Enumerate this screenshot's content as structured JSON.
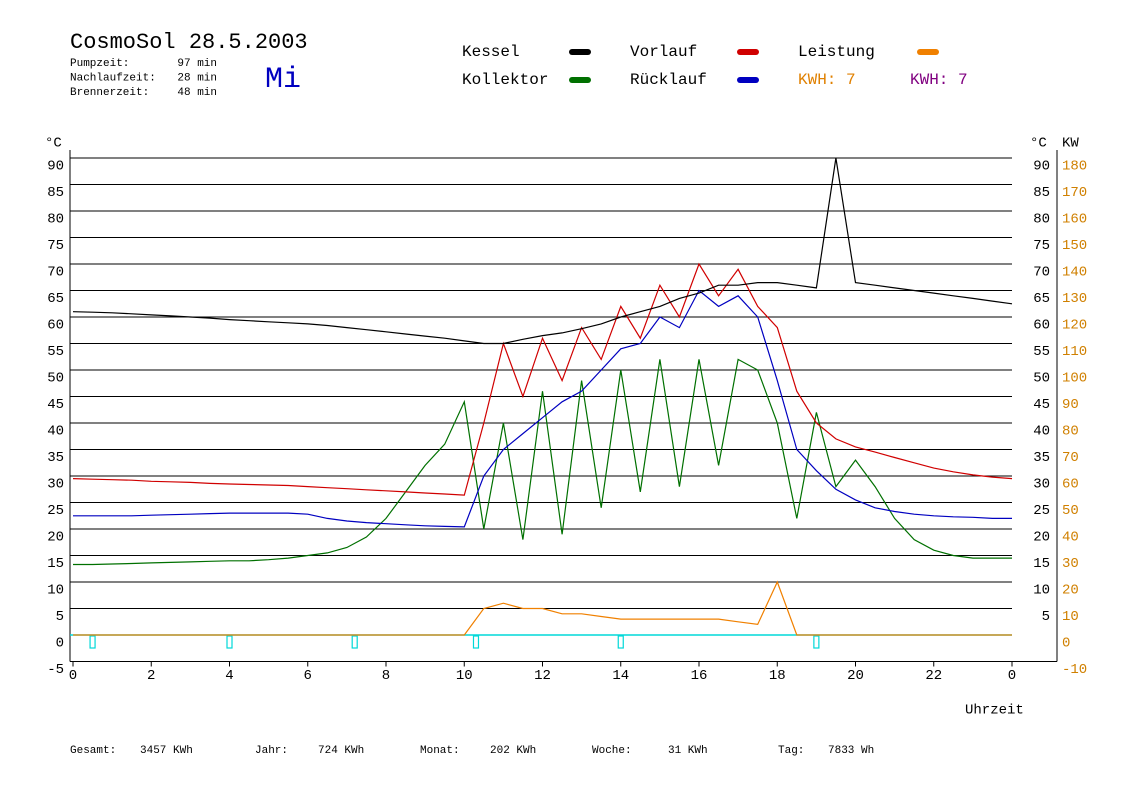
{
  "chart_data": {
    "type": "line",
    "title": "CosmoSol 28.5.2003",
    "stats": [
      {
        "label": "Pumpzeit:",
        "value": "97 min"
      },
      {
        "label": "Nachlaufzeit:",
        "value": "28 min"
      },
      {
        "label": "Brennerzeit:",
        "value": "48 min"
      }
    ],
    "day": "Mi",
    "day_color": "#0000c0",
    "kwh_labels": [
      {
        "label": "KWH: 7",
        "color": "#e08000"
      },
      {
        "label": "KWH: 7",
        "color": "#800080"
      }
    ],
    "y_axis_label": "°C",
    "y_axis_label_right": "°C",
    "y2_axis_label": "KW",
    "x_axis_label": "Uhrzeit",
    "x": [
      0,
      0.5,
      1,
      1.5,
      2,
      2.5,
      3,
      3.5,
      4,
      4.5,
      5,
      5.5,
      6,
      6.5,
      7,
      7.5,
      8,
      8.5,
      9,
      9.5,
      10,
      10.5,
      11,
      11.5,
      12,
      12.5,
      13,
      13.5,
      14,
      14.5,
      15,
      15.5,
      16,
      16.5,
      17,
      17.5,
      18,
      18.5,
      19,
      19.5,
      20,
      20.5,
      21,
      21.5,
      22,
      22.5,
      23,
      23.5,
      24
    ],
    "series": [
      {
        "name": "Kessel",
        "color": "#000000",
        "values": [
          61,
          60.9,
          60.8,
          60.6,
          60.4,
          60.2,
          60,
          59.8,
          59.5,
          59.3,
          59.1,
          58.9,
          58.7,
          58.4,
          58,
          57.6,
          57.2,
          56.8,
          56.4,
          56,
          55.5,
          55,
          55,
          55.8,
          56.5,
          57,
          57.8,
          58.7,
          60,
          61,
          62,
          63.5,
          64.5,
          66,
          66,
          66.5,
          66.5,
          66,
          65.5,
          90,
          66.5,
          66,
          65.5,
          65,
          64.5,
          64,
          63.5,
          63,
          62.5
        ]
      },
      {
        "name": "Kollektor",
        "color": "#007000",
        "values": [
          13.3,
          13.3,
          13.4,
          13.5,
          13.6,
          13.7,
          13.8,
          13.9,
          14,
          14,
          14.2,
          14.5,
          15,
          15.5,
          16.5,
          18.5,
          22,
          27,
          32,
          36,
          44,
          20,
          40,
          18,
          46,
          19,
          48,
          24,
          50,
          27,
          52,
          28,
          52,
          32,
          52,
          50,
          40,
          22,
          42,
          28,
          33,
          28,
          22,
          18,
          16,
          15,
          14.5,
          14.5,
          14.5
        ]
      },
      {
        "name": "Vorlauf",
        "color": "#d00000",
        "values": [
          29.5,
          29.4,
          29.3,
          29.2,
          29,
          28.9,
          28.8,
          28.6,
          28.5,
          28.4,
          28.3,
          28.2,
          28,
          27.8,
          27.6,
          27.4,
          27.2,
          27,
          26.8,
          26.6,
          26.4,
          40,
          55,
          45,
          56,
          48,
          58,
          52,
          62,
          56,
          66,
          60,
          70,
          64,
          69,
          62,
          58,
          46,
          40,
          37,
          35.5,
          34.5,
          33.5,
          32.5,
          31.5,
          30.8,
          30.2,
          29.8,
          29.5
        ]
      },
      {
        "name": "Rücklauf",
        "color": "#0000c0",
        "values": [
          22.5,
          22.5,
          22.5,
          22.5,
          22.6,
          22.7,
          22.8,
          22.9,
          23,
          23,
          23,
          23,
          22.8,
          22,
          21.5,
          21.2,
          21,
          20.8,
          20.6,
          20.5,
          20.4,
          30,
          35,
          38,
          41,
          44,
          46,
          50,
          54,
          55,
          60,
          58,
          65,
          62,
          64,
          60,
          48,
          35,
          31,
          27.5,
          25.5,
          24,
          23.3,
          22.8,
          22.5,
          22.3,
          22.2,
          22,
          22
        ]
      },
      {
        "name": "Leistung",
        "color": "#f08000",
        "axis": "y2",
        "values": [
          0,
          0,
          0,
          0,
          0,
          0,
          0,
          0,
          0,
          0,
          0,
          0,
          0,
          0,
          0,
          0,
          0,
          0,
          0,
          0,
          0,
          10,
          12,
          10,
          10,
          8,
          8,
          7,
          6,
          6,
          6,
          6,
          6,
          6,
          5,
          4,
          20,
          0,
          0,
          0,
          0,
          0,
          0,
          0,
          0,
          0,
          0,
          0,
          0
        ]
      }
    ],
    "markers": [
      0.5,
      4,
      7.2,
      10.3,
      14,
      19
    ],
    "markers_color": "#00d8d8",
    "xlim": [
      0,
      24
    ],
    "xticks": [
      0,
      2,
      4,
      6,
      8,
      10,
      12,
      14,
      16,
      18,
      20,
      22,
      {
        "value": 24,
        "label": "0"
      }
    ],
    "ylim": [
      -5,
      90
    ],
    "yticks": [
      -5,
      0,
      5,
      10,
      15,
      20,
      25,
      30,
      35,
      40,
      45,
      50,
      55,
      60,
      65,
      70,
      75,
      80,
      85,
      90
    ],
    "yticks_right": [
      5,
      10,
      15,
      20,
      25,
      30,
      35,
      40,
      45,
      50,
      55,
      60,
      65,
      70,
      75,
      80,
      85,
      90
    ],
    "y2lim": [
      -10,
      180
    ],
    "y2ticks": [
      -10,
      0,
      10,
      20,
      30,
      40,
      50,
      60,
      70,
      80,
      90,
      100,
      110,
      120,
      130,
      140,
      150,
      160,
      170,
      180
    ],
    "y2_color": "#d08000",
    "grid": true,
    "footer": [
      {
        "label": "Gesamt:",
        "value": "3457 KWh"
      },
      {
        "label": "Jahr:",
        "value": "724 KWh"
      },
      {
        "label": "Monat:",
        "value": "202 KWh"
      },
      {
        "label": "Woche:",
        "value": "31 KWh"
      },
      {
        "label": "Tag:",
        "value": "7833 Wh"
      }
    ]
  }
}
